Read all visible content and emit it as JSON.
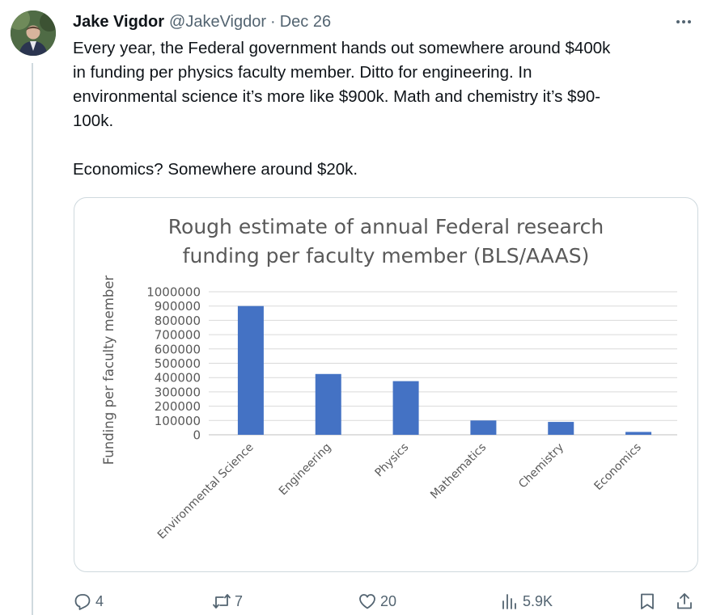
{
  "tweet": {
    "author_name": "Jake Vigdor",
    "handle": "@JakeVigdor",
    "separator": "·",
    "date": "Dec 26",
    "paragraphs": [
      "Every year, the Federal government hands out somewhere around $400k\nin funding per physics faculty member. Ditto for engineering. In\nenvironmental science it’s more like $900k. Math and chemistry it’s $90-\n100k.",
      "Economics? Somewhere around $20k."
    ]
  },
  "actions": {
    "reply_count": "4",
    "retweet_count": "7",
    "like_count": "20",
    "views_count": "5.9K"
  },
  "icons": {
    "avatar": "avatar-photo",
    "more": "more-options-icon",
    "reply": "reply-icon",
    "retweet": "retweet-icon",
    "like": "heart-icon",
    "views": "views-chart-icon",
    "bookmark": "bookmark-icon",
    "share": "share-icon"
  },
  "colors": {
    "bar": "#4472c4",
    "text_secondary": "#536471",
    "chart_text": "#595959"
  },
  "chart_data": {
    "type": "bar",
    "title": [
      "Rough estimate of annual Federal research",
      "funding per faculty member (BLS/AAAS)"
    ],
    "xlabel": "",
    "ylabel": "Funding per faculty member",
    "categories": [
      "Environmental Science",
      "Engineering",
      "Physics",
      "Mathematics",
      "Chemistry",
      "Economics"
    ],
    "values": [
      900000,
      425000,
      375000,
      100000,
      90000,
      20000
    ],
    "ylim": [
      0,
      1000000
    ],
    "yticks": [
      "0",
      "100000",
      "200000",
      "300000",
      "400000",
      "500000",
      "600000",
      "700000",
      "800000",
      "900000",
      "1000000"
    ],
    "grid": true,
    "legend": "none"
  }
}
